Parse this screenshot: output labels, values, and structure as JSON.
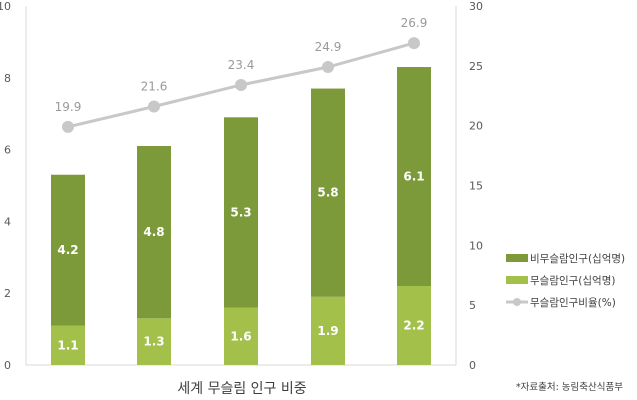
{
  "chart_data": {
    "type": "bar",
    "stacked": true,
    "title": "세계 무슬림 인구 비중",
    "source": "*자료출처: 농림축산식품부",
    "categories": [
      "",
      "",
      "",
      "",
      ""
    ],
    "y_left": {
      "min": 0,
      "max": 10,
      "ticks": [
        0,
        2,
        4,
        6,
        8,
        10
      ]
    },
    "y_right": {
      "min": 0,
      "max": 30,
      "ticks": [
        0,
        5,
        10,
        15,
        20,
        25,
        30
      ]
    },
    "grid": false,
    "legend_position": "right",
    "series": [
      {
        "name": "무슬람인구(십억명)",
        "type": "bar",
        "axis": "left",
        "color": "#a3c04b",
        "values": [
          1.1,
          1.3,
          1.6,
          1.9,
          2.2
        ],
        "labels": [
          "1.1",
          "1.3",
          "1.6",
          "1.9",
          "2.2"
        ]
      },
      {
        "name": "비무슬람인구(십억명)",
        "type": "bar",
        "axis": "left",
        "color": "#7d9a3b",
        "values": [
          4.2,
          4.8,
          5.3,
          5.8,
          6.1
        ],
        "labels": [
          "4.2",
          "4.8",
          "5.3",
          "5.8",
          "6.1"
        ]
      },
      {
        "name": "무슬람인구비율(%)",
        "type": "line",
        "axis": "right",
        "color": "#c8c8c8",
        "values": [
          19.9,
          21.6,
          23.4,
          24.9,
          26.9
        ],
        "labels": [
          "19.9",
          "21.6",
          "23.4",
          "24.9",
          "26.9"
        ]
      }
    ],
    "legend": [
      "비무슬람인구(십억명)",
      "무슬람인구(십억명)",
      "무슬람인구비율(%)"
    ]
  }
}
